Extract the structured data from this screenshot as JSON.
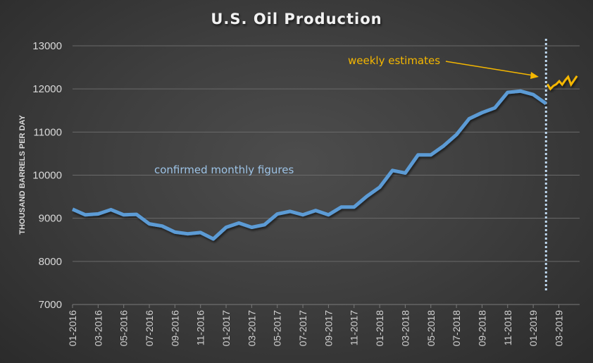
{
  "chart_data": {
    "type": "line",
    "title": "U.S. Oil Production",
    "xlabel": "",
    "ylabel": "THOUSAND BARRELS PER DAY",
    "ylim": [
      7000,
      13000
    ],
    "yticks": [
      7000,
      8000,
      9000,
      10000,
      11000,
      12000,
      13000
    ],
    "grid": true,
    "xtick_labels": [
      "01-2016",
      "03-2016",
      "05-2016",
      "07-2016",
      "09-2016",
      "11-2016",
      "01-2017",
      "03-2017",
      "05-2017",
      "07-2017",
      "09-2017",
      "11-2017",
      "01-2018",
      "03-2018",
      "05-2018",
      "07-2018",
      "09-2018",
      "11-2018",
      "01-2019",
      "03-2019"
    ],
    "x_range_months": [
      "01-2016",
      "05-2019"
    ],
    "series": [
      {
        "name": "confirmed monthly figures",
        "color": "#5b9bd5",
        "frequency": "monthly",
        "start": "01-2016",
        "values": [
          9210,
          9080,
          9100,
          9200,
          9080,
          9090,
          8870,
          8820,
          8680,
          8640,
          8670,
          8520,
          8790,
          8890,
          8790,
          8850,
          9100,
          9160,
          9080,
          9180,
          9080,
          9260,
          9260,
          9510,
          9720,
          10110,
          10050,
          10470,
          10470,
          10680,
          10940,
          11310,
          11450,
          11560,
          11920,
          11950,
          11870,
          11660
        ]
      },
      {
        "name": "weekly estimates",
        "color": "#f5b700",
        "frequency": "weekly",
        "start": "02-2019",
        "values": [
          12110,
          12000,
          12070,
          12110,
          12180,
          12100,
          12200,
          12280,
          12100,
          12200,
          12300
        ]
      }
    ],
    "annotations": [
      {
        "text": "weekly estimates",
        "color": "#f5b700",
        "arrow_to": "start of weekly series"
      },
      {
        "text": "confirmed monthly figures",
        "color": "#9dc3e6"
      }
    ],
    "divider": {
      "style": "dotted vertical",
      "color": "#bdd7ee",
      "at": "02-2019"
    }
  }
}
